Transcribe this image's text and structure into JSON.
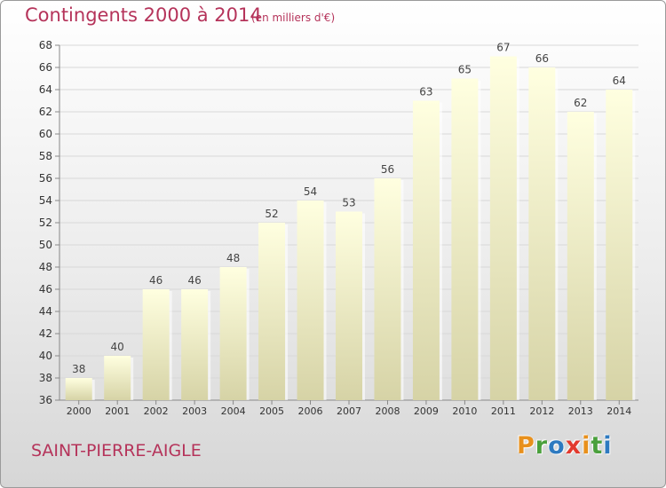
{
  "header": {
    "title": "Contingents 2000 à 2014",
    "subtitle": "(en milliers d'€)"
  },
  "footer": {
    "place": "SAINT-PIERRE-AIGLE",
    "logo_letters": [
      "P",
      "r",
      "o",
      "x",
      "i",
      "t",
      "i"
    ],
    "logo_colors": [
      "#e8901c",
      "#4aa03c",
      "#2e7ac0",
      "#e23a2e",
      "#e8901c",
      "#4aa03c",
      "#2e7ac0"
    ]
  },
  "chart_data": {
    "type": "bar",
    "title": "Contingents 2000 à 2014",
    "subtitle": "(en milliers d'€)",
    "categories": [
      "2000",
      "2001",
      "2002",
      "2003",
      "2004",
      "2005",
      "2006",
      "2007",
      "2008",
      "2009",
      "2010",
      "2011",
      "2012",
      "2013",
      "2014"
    ],
    "values": [
      38,
      40,
      46,
      46,
      48,
      52,
      54,
      53,
      56,
      63,
      65,
      67,
      66,
      62,
      64
    ],
    "ylim": [
      36,
      68
    ],
    "yticks": [
      36,
      38,
      40,
      42,
      44,
      46,
      48,
      50,
      52,
      54,
      56,
      58,
      60,
      62,
      64,
      66,
      68
    ],
    "grid": true,
    "bar_color_top": "#ffffe0",
    "bar_color_bottom": "#d6d3a6",
    "text_color": "#b5335a"
  }
}
